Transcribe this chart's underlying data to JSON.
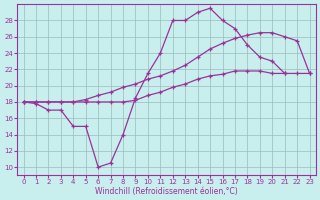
{
  "xlabel": "Windchill (Refroidissement éolien,°C)",
  "background_color": "#c8eeed",
  "grid_color": "#9bbcbc",
  "line_color": "#993399",
  "xlim": [
    -0.5,
    23.5
  ],
  "ylim": [
    9,
    30
  ],
  "yticks": [
    10,
    12,
    14,
    16,
    18,
    20,
    22,
    24,
    26,
    28
  ],
  "xticks": [
    0,
    1,
    2,
    3,
    4,
    5,
    6,
    7,
    8,
    9,
    10,
    11,
    12,
    13,
    14,
    15,
    16,
    17,
    18,
    19,
    20,
    21,
    22,
    23
  ],
  "line1_x": [
    0,
    1,
    2,
    3,
    4,
    5,
    6,
    7,
    8,
    9,
    10,
    11,
    12,
    13,
    14,
    15,
    16,
    17,
    18,
    19,
    20,
    21
  ],
  "line1_y": [
    18,
    17.8,
    17,
    17,
    15,
    15,
    10,
    10.5,
    14,
    18.5,
    21.5,
    24,
    28,
    28,
    29,
    29.5,
    28,
    27,
    25,
    23.5,
    23,
    21.5
  ],
  "line2_x": [
    0,
    1,
    2,
    3,
    4,
    5,
    6,
    7,
    8,
    9,
    10,
    11,
    12,
    13,
    14,
    15,
    16,
    17,
    18,
    19,
    20,
    21,
    22,
    23
  ],
  "line2_y": [
    18,
    18,
    18,
    18,
    18,
    18,
    18,
    18,
    18,
    18.2,
    18.8,
    19.2,
    19.8,
    20.2,
    20.8,
    21.2,
    21.4,
    21.8,
    21.8,
    21.8,
    21.5,
    21.5,
    21.5,
    21.5
  ],
  "line3_x": [
    0,
    1,
    2,
    3,
    4,
    5,
    6,
    7,
    8,
    9,
    10,
    11,
    12,
    13,
    14,
    15,
    16,
    17,
    18,
    19,
    20,
    21,
    22,
    23
  ],
  "line3_y": [
    18,
    18,
    18,
    18,
    18,
    18.3,
    18.8,
    19.2,
    19.8,
    20.2,
    20.8,
    21.2,
    21.8,
    22.5,
    23.5,
    24.5,
    25.2,
    25.8,
    26.2,
    26.5,
    26.5,
    26,
    25.5,
    21.5
  ]
}
